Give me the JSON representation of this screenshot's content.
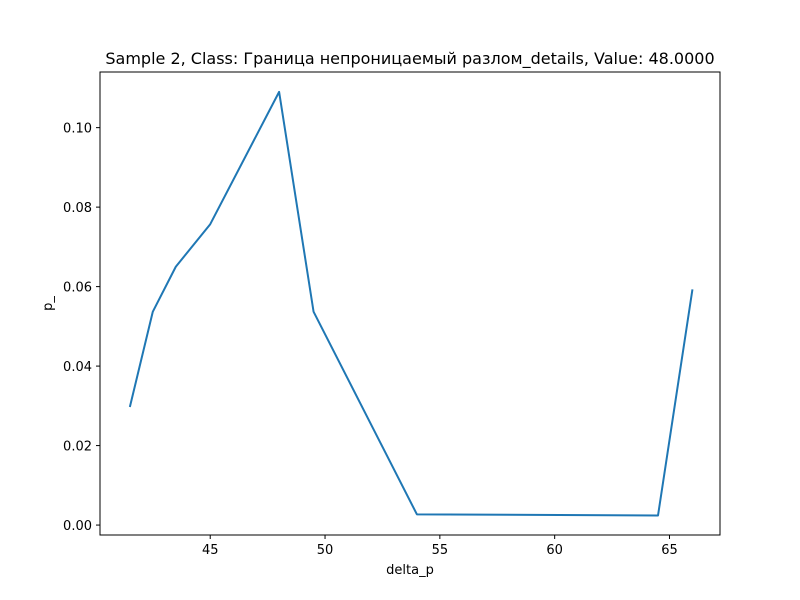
{
  "chart_data": {
    "type": "line",
    "title": "Sample 2, Class: Граница непроницаемый разлом_details, Value: 48.0000",
    "xlabel": "delta_p",
    "ylabel": "p_",
    "xlim": [
      40.2,
      67.2
    ],
    "ylim": [
      -0.0025,
      0.114
    ],
    "xticks": [
      45,
      50,
      55,
      60,
      65
    ],
    "xtick_labels": [
      "45",
      "50",
      "55",
      "60",
      "65"
    ],
    "yticks": [
      0.0,
      0.02,
      0.04,
      0.06,
      0.08,
      0.1
    ],
    "ytick_labels": [
      "0.00",
      "0.02",
      "0.04",
      "0.06",
      "0.08",
      "0.10"
    ],
    "grid": false,
    "series": [
      {
        "color": "#1f77b4",
        "x": [
          41.5,
          42.5,
          43.5,
          45.0,
          48.0,
          49.5,
          54.0,
          64.5,
          66.0
        ],
        "y": [
          0.0297,
          0.0537,
          0.065,
          0.0757,
          0.109,
          0.0537,
          0.0027,
          0.0024,
          0.0593
        ]
      }
    ]
  }
}
